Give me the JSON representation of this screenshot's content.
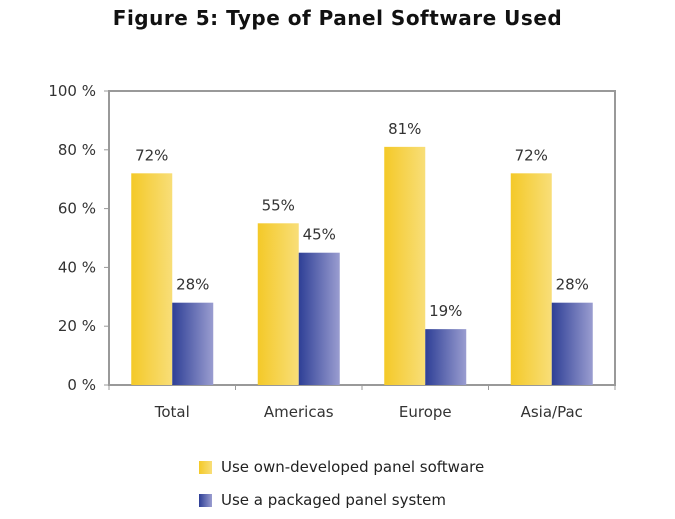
{
  "chart_data": {
    "type": "bar",
    "title": "Figure 5: Type of Panel Software Used",
    "categories": [
      "Total",
      "Americas",
      "Europe",
      "Asia/Pac"
    ],
    "series": [
      {
        "name": "Use own-developed panel software",
        "values": [
          72,
          55,
          81,
          72
        ],
        "labels": [
          "72%",
          "55%",
          "81%",
          "72%"
        ],
        "color": "#f5cc30"
      },
      {
        "name": "Use a packaged panel system",
        "values": [
          28,
          45,
          19,
          28
        ],
        "labels": [
          "28%",
          "45%",
          "19%",
          "28%"
        ],
        "color": "#3a4aa0"
      }
    ],
    "yticks": [
      "0 %",
      "20 %",
      "40 %",
      "60 %",
      "80 %",
      "100 %"
    ],
    "ylim": [
      0,
      100
    ],
    "xlabel": "",
    "ylabel": "",
    "grid": false,
    "legend": "bottom"
  }
}
